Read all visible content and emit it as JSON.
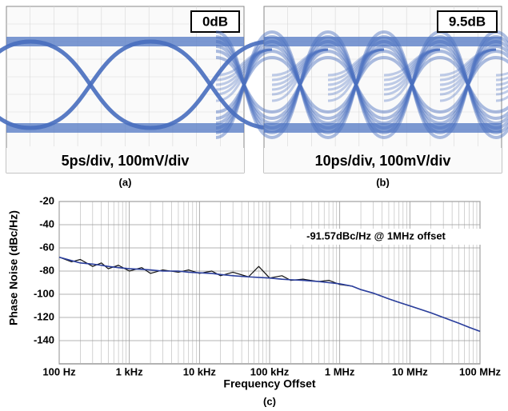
{
  "panels": [
    {
      "badge": "0dB",
      "caption": "5ps/div, 100mV/div",
      "label": "(a)"
    },
    {
      "badge": "9.5dB",
      "caption": "10ps/div, 100mV/div",
      "label": "(b)"
    }
  ],
  "chart_data": {
    "type": "line",
    "label": "(c)",
    "annotation": "-91.57dBc/Hz @ 1MHz offset",
    "x_label": "Frequency Offset",
    "y_label": "Phase Noise (dBc/Hz)",
    "log_x": true,
    "grid": true,
    "x": [
      100,
      150,
      200,
      300,
      400,
      500,
      700,
      1000,
      1500,
      2000,
      3000,
      5000,
      7000,
      10000,
      15000,
      20000,
      30000,
      50000,
      70000,
      100000,
      150000,
      200000,
      300000,
      500000,
      700000,
      1000000,
      1500000,
      2000000,
      3000000,
      5000000,
      7000000,
      10000000,
      20000000,
      30000000,
      50000000,
      70000000,
      100000000
    ],
    "series": [
      {
        "color": "#111111",
        "values": [
          -68,
          -72,
          -70,
          -76,
          -73,
          -78,
          -75,
          -80,
          -77,
          -82,
          -79,
          -81,
          -79,
          -82,
          -80,
          -84,
          -81,
          -85,
          -76,
          -86,
          -84,
          -88,
          -87,
          -89,
          -88,
          -91.57,
          -93,
          -96,
          -99,
          -104,
          -107,
          -110,
          -116,
          -120,
          -125,
          -128.5,
          -132
        ]
      },
      {
        "color": "#2b3f9e",
        "values": [
          -68,
          -71,
          -73,
          -74,
          -75,
          -76,
          -77,
          -78,
          -78.5,
          -79,
          -80,
          -80,
          -81,
          -81.5,
          -82,
          -83,
          -84,
          -85,
          -85.5,
          -86,
          -87,
          -87.5,
          -88,
          -89,
          -90,
          -91,
          -93,
          -96,
          -99,
          -104,
          -107,
          -110,
          -116,
          -120,
          -125,
          -128.5,
          -132
        ]
      }
    ],
    "xlim": [
      100,
      100000000
    ],
    "ylim": [
      -160,
      -20
    ],
    "xticks": [
      {
        "value": 100,
        "label": "100 Hz"
      },
      {
        "value": 1000,
        "label": "1 kHz"
      },
      {
        "value": 10000,
        "label": "10 kHz"
      },
      {
        "value": 100000,
        "label": "100 kHz"
      },
      {
        "value": 1000000,
        "label": "1 MHz"
      },
      {
        "value": 10000000,
        "label": "10 MHz"
      },
      {
        "value": 100000000,
        "label": "100 MHz"
      }
    ],
    "x_minor_ticks": [
      200,
      300,
      400,
      500,
      600,
      700,
      800,
      900,
      2000,
      3000,
      4000,
      5000,
      6000,
      7000,
      8000,
      9000,
      20000,
      30000,
      40000,
      50000,
      60000,
      70000,
      80000,
      90000,
      200000,
      300000,
      400000,
      500000,
      600000,
      700000,
      800000,
      900000,
      2000000,
      3000000,
      4000000,
      5000000,
      6000000,
      7000000,
      8000000,
      9000000,
      20000000,
      30000000,
      40000000,
      50000000,
      60000000,
      70000000,
      80000000,
      90000000
    ],
    "yticks": [
      -140,
      -120,
      -100,
      -80,
      -60,
      -40,
      -20
    ]
  }
}
